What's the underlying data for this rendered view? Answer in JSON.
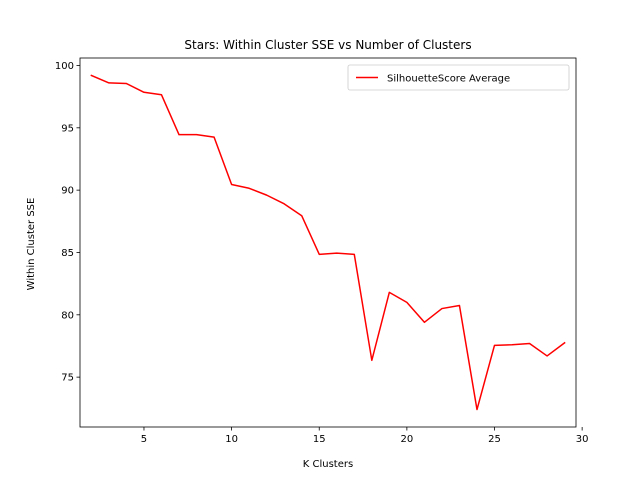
{
  "chart_data": {
    "type": "line",
    "title": "Stars: Within Cluster SSE vs Number of Clusters",
    "xlabel": "K Clusters",
    "ylabel": "Within Cluster SSE",
    "xlim": [
      1.35,
      29.65
    ],
    "ylim": [
      71.0,
      100.6
    ],
    "xticks": [
      5,
      10,
      15,
      20,
      25,
      30
    ],
    "yticks": [
      75,
      80,
      85,
      90,
      95,
      100
    ],
    "grid": false,
    "legend_position": "top-right",
    "series": [
      {
        "name": "SilhouetteScore Average",
        "color": "#ff0000",
        "x": [
          2,
          3,
          4,
          5,
          6,
          7,
          8,
          9,
          10,
          11,
          12,
          13,
          14,
          15,
          16,
          17,
          18,
          19,
          20,
          21,
          22,
          23,
          24,
          25,
          26,
          27,
          28,
          29
        ],
        "y": [
          99.2,
          98.6,
          98.55,
          97.85,
          97.65,
          94.45,
          94.45,
          94.25,
          90.45,
          90.15,
          89.6,
          88.9,
          87.95,
          84.85,
          84.95,
          84.85,
          76.35,
          81.8,
          81.0,
          79.4,
          80.5,
          80.75,
          72.4,
          77.55,
          77.6,
          77.7,
          76.7,
          77.75
        ]
      }
    ]
  }
}
